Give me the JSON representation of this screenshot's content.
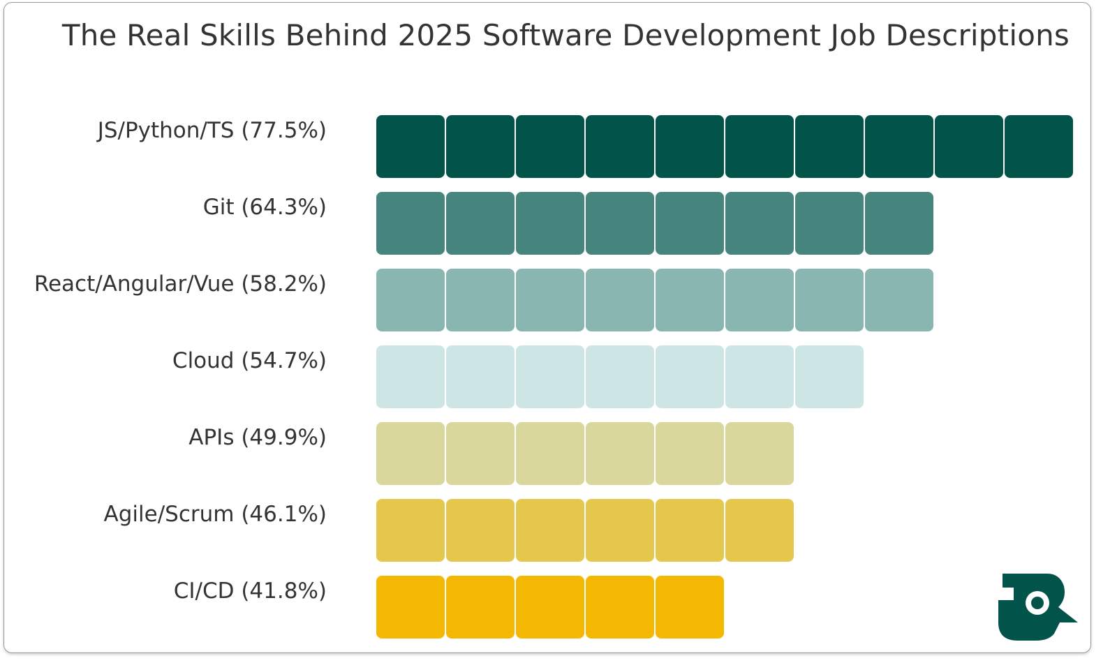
{
  "chart_data": {
    "type": "bar",
    "orientation": "horizontal",
    "style": "tiled bars, one tile per unit",
    "title": "The Real Skills Behind 2025 Software Development Job Descriptions",
    "xlabel": "",
    "ylabel": "",
    "grid": false,
    "legend": "none",
    "categories": [
      "JS/Python/TS (77.5%)",
      "Git (64.3%)",
      "React/Angular/Vue (58.2%)",
      "Cloud (54.7%)",
      "APIs (49.9%)",
      "Agile/Scrum (46.1%)",
      "CI/CD (41.8%)"
    ],
    "values": [
      77.5,
      64.3,
      58.2,
      54.7,
      49.9,
      46.1,
      41.8
    ],
    "tiles": [
      10,
      8,
      8,
      7,
      6,
      6,
      5
    ],
    "colors": [
      "#02544B",
      "#46847E",
      "#8AB6B2",
      "#CDE6E5",
      "#D9D79C",
      "#E5C74E",
      "#F4B702"
    ]
  },
  "brand": {
    "logo_icon": "brand-logo-icon",
    "color": "#02544B"
  }
}
